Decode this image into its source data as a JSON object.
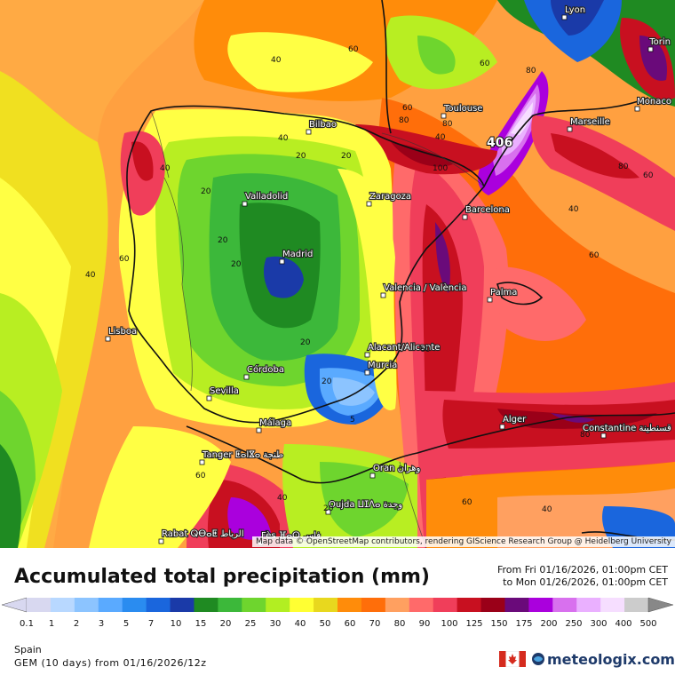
{
  "title": "Accumulated total precipitation (mm)",
  "period": {
    "from": "From Fri 01/16/2026, 01:00pm CET",
    "to": "to Mon 01/26/2026, 01:00pm CET"
  },
  "region": "Spain",
  "model": "GEM (10 days) from 01/16/2026/12z",
  "brand": "meteologix.com",
  "credit": "Map data © OpenStreetMap contributors, rendering GIScience Research Group @ Heidelberg University",
  "max_value": "406",
  "legend": {
    "values": [
      "0.1",
      "1",
      "2",
      "3",
      "5",
      "7",
      "10",
      "15",
      "20",
      "25",
      "30",
      "40",
      "50",
      "60",
      "70",
      "80",
      "90",
      "100",
      "125",
      "150",
      "175",
      "200",
      "250",
      "300",
      "400",
      "500"
    ],
    "colors": [
      "#d8d8f0",
      "#b8d8ff",
      "#8cc4ff",
      "#5aaaff",
      "#2a8cf0",
      "#1a66dd",
      "#1a3aa8",
      "#1f8a22",
      "#3cb83a",
      "#6ed52e",
      "#b2ee22",
      "#ffff33",
      "#e8d81e",
      "#ff8c0a",
      "#ff6e0a",
      "#ffa060",
      "#ff6a6a",
      "#f03e5a",
      "#c81020",
      "#9a0018",
      "#6a0a7a",
      "#aa00dd",
      "#d870ee",
      "#eab0ff",
      "#f6deff",
      "#cccccc"
    ]
  },
  "cities": [
    {
      "name": "Lyon"
    },
    {
      "name": "Torin"
    },
    {
      "name": "Monaco"
    },
    {
      "name": "Marseille"
    },
    {
      "name": "Toulouse"
    },
    {
      "name": "Bilbao"
    },
    {
      "name": "Zaragoza"
    },
    {
      "name": "Barcelona"
    },
    {
      "name": "Valladolid"
    },
    {
      "name": "Madrid"
    },
    {
      "name": "Valencia / València"
    },
    {
      "name": "Palma"
    },
    {
      "name": "Lisboa"
    },
    {
      "name": "Alacant/Alicante"
    },
    {
      "name": "Murcia"
    },
    {
      "name": "Córdoba"
    },
    {
      "name": "Sevilla"
    },
    {
      "name": "Málaga"
    },
    {
      "name": "Alger"
    },
    {
      "name": "Constantine قسنطينة"
    },
    {
      "name": "Tanger ⵟⴰⵏⴵⴰ طنجة"
    },
    {
      "name": "Oran وهران"
    },
    {
      "name": "Oujda ⵡⵊⴷⴰ وجدة"
    },
    {
      "name": "Rabat ⵕⴱⴰⵟ الرباط"
    },
    {
      "name": "Fès ⴼⴰⵙ فاس"
    }
  ],
  "contour_labels": [
    "40",
    "60",
    "60",
    "80",
    "40",
    "40",
    "20",
    "20",
    "20",
    "40",
    "20",
    "20",
    "60",
    "40",
    "20",
    "5",
    "20",
    "60",
    "60",
    "80",
    "80",
    "60",
    "40",
    "60",
    "80",
    "100",
    "60",
    "40",
    "20",
    "60",
    "40",
    "80"
  ]
}
